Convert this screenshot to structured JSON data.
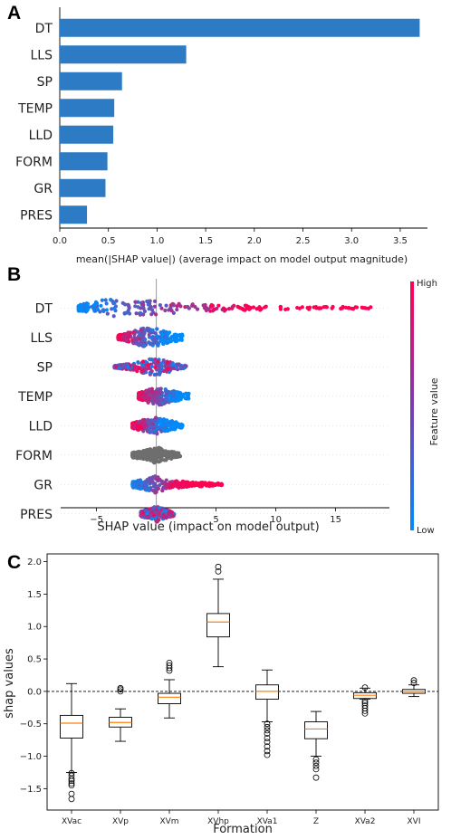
{
  "panels": {
    "a": "A",
    "b": "B",
    "c": "C"
  },
  "chart_data": [
    {
      "type": "bar",
      "orientation": "horizontal",
      "categories": [
        "DT",
        "LLS",
        "SP",
        "TEMP",
        "LLD",
        "FORM",
        "GR",
        "PRES"
      ],
      "values": [
        3.7,
        1.3,
        0.64,
        0.56,
        0.55,
        0.49,
        0.47,
        0.28
      ],
      "xlabel": "mean(|SHAP value|) (average impact on model output magnitude)",
      "xticks": [
        "0.0",
        "0.5",
        "1.0",
        "1.5",
        "2.0",
        "2.5",
        "3.0",
        "3.5"
      ],
      "xlim": [
        0,
        3.78
      ],
      "bar_color": "#2d7bc4"
    },
    {
      "type": "scatter",
      "subtype": "beeswarm",
      "categories": [
        "DT",
        "LLS",
        "SP",
        "TEMP",
        "LLD",
        "FORM",
        "GR",
        "PRES"
      ],
      "series": [
        {
          "name": "DT",
          "min": -6.5,
          "max": 18,
          "spread": [
            [
              -6.5,
              0.3
            ],
            [
              -4,
              0.9
            ],
            [
              -2,
              0.7
            ],
            [
              0,
              0.8
            ],
            [
              2,
              0.55
            ],
            [
              4,
              0.35
            ],
            [
              6,
              0.3
            ],
            [
              9,
              0.2
            ],
            [
              12,
              0.15
            ],
            [
              15,
              0.12
            ],
            [
              18,
              0.08
            ]
          ],
          "colorByX": "low-left"
        },
        {
          "name": "LLS",
          "min": -3.2,
          "max": 2.2,
          "spread": [
            [
              -3.2,
              0.2
            ],
            [
              -2,
              0.6
            ],
            [
              -1,
              0.95
            ],
            [
              0,
              0.9
            ],
            [
              1,
              0.55
            ],
            [
              2.2,
              0.3
            ]
          ],
          "colorByX": "high-left"
        },
        {
          "name": "SP",
          "min": -3.5,
          "max": 2.5,
          "spread": [
            [
              -3.5,
              0.1
            ],
            [
              -2,
              0.35
            ],
            [
              -1,
              0.65
            ],
            [
              0,
              0.9
            ],
            [
              1,
              0.55
            ],
            [
              2.5,
              0.1
            ]
          ],
          "colorByX": "mixed"
        },
        {
          "name": "TEMP",
          "min": -1.5,
          "max": 2.8,
          "spread": [
            [
              -1.5,
              0.3
            ],
            [
              -0.5,
              0.75
            ],
            [
              0.5,
              0.9
            ],
            [
              1.5,
              0.5
            ],
            [
              2.8,
              0.25
            ]
          ],
          "colorByX": "high-left"
        },
        {
          "name": "LLD",
          "min": -2.0,
          "max": 2.2,
          "spread": [
            [
              -2,
              0.25
            ],
            [
              -1,
              0.6
            ],
            [
              0,
              0.85
            ],
            [
              1,
              0.55
            ],
            [
              2.2,
              0.2
            ]
          ],
          "colorByX": "high-left"
        },
        {
          "name": "FORM",
          "min": -2.0,
          "max": 2.0,
          "spread": [
            [
              -2,
              0.25
            ],
            [
              -1,
              0.45
            ],
            [
              0,
              0.85
            ],
            [
              1,
              0.45
            ],
            [
              2,
              0.2
            ]
          ],
          "colorByX": "gray"
        },
        {
          "name": "GR",
          "min": -2.0,
          "max": 5.5,
          "spread": [
            [
              -2,
              0.3
            ],
            [
              -1,
              0.5
            ],
            [
              0,
              0.9
            ],
            [
              1,
              0.4
            ],
            [
              3,
              0.25
            ],
            [
              5.5,
              0.1
            ]
          ],
          "colorByX": "low-left"
        },
        {
          "name": "PRES",
          "min": -1.3,
          "max": 1.5,
          "spread": [
            [
              -1.3,
              0.25
            ],
            [
              -0.3,
              0.6
            ],
            [
              0,
              0.85
            ],
            [
              0.6,
              0.55
            ],
            [
              1.5,
              0.2
            ]
          ],
          "colorByX": "mixed"
        }
      ],
      "xlabel": "SHAP value (impact on model output)",
      "xticks": [
        "−5",
        "0",
        "5",
        "10",
        "15"
      ],
      "xlim": [
        -8,
        19.5
      ],
      "colorbar": {
        "label": "Feature value",
        "high": "High",
        "low": "Low",
        "color_high": "#ff0052",
        "color_low": "#008bfb"
      }
    },
    {
      "type": "box",
      "categories": [
        "XVac",
        "XVp",
        "XVm",
        "XVhp",
        "XVa1",
        "Z",
        "XVa2",
        "XVI"
      ],
      "boxes": [
        {
          "q1": -0.72,
          "median": -0.49,
          "q3": -0.37,
          "whislo": -1.25,
          "whishi": 0.12,
          "fliers": [
            -1.26,
            -1.3,
            -1.35,
            -1.38,
            -1.42,
            -1.45,
            -1.58,
            -1.66
          ]
        },
        {
          "q1": -0.55,
          "median": -0.48,
          "q3": -0.4,
          "whislo": -0.77,
          "whishi": -0.27,
          "fliers": [
            0.0,
            0.03,
            0.05
          ]
        },
        {
          "q1": -0.19,
          "median": -0.09,
          "q3": -0.03,
          "whislo": -0.41,
          "whishi": 0.18,
          "fliers": [
            0.32,
            0.36,
            0.4,
            0.44
          ]
        },
        {
          "q1": 0.84,
          "median": 1.07,
          "q3": 1.2,
          "whislo": 0.38,
          "whishi": 1.73,
          "fliers": [
            1.85,
            1.92
          ]
        },
        {
          "q1": -0.12,
          "median": 0.0,
          "q3": 0.1,
          "whislo": -0.47,
          "whishi": 0.33,
          "fliers": [
            -0.5,
            -0.55,
            -0.6,
            -0.65,
            -0.72,
            -0.78,
            -0.85,
            -0.92,
            -0.98
          ]
        },
        {
          "q1": -0.73,
          "median": -0.58,
          "q3": -0.47,
          "whislo": -1.0,
          "whishi": -0.31,
          "fliers": [
            -1.05,
            -1.1,
            -1.15,
            -1.2,
            -1.33
          ]
        },
        {
          "q1": -0.11,
          "median": -0.06,
          "q3": -0.02,
          "whislo": -0.12,
          "whishi": 0.05,
          "fliers": [
            -0.15,
            -0.18,
            -0.22,
            -0.26,
            -0.3,
            -0.34,
            0.06
          ]
        },
        {
          "q1": -0.03,
          "median": 0.0,
          "q3": 0.03,
          "whislo": -0.08,
          "whishi": 0.1,
          "fliers": [
            0.13,
            0.17
          ]
        }
      ],
      "xlabel": "Formation",
      "ylabel": "shap values",
      "yticks": [
        "2.0",
        "1.5",
        "1.0",
        "0.5",
        "0.0",
        "−0.5",
        "−1.0",
        "−1.5"
      ],
      "ylim": [
        -1.83,
        2.12
      ],
      "box_color": "#000000",
      "median_color": "#ff7f0e"
    }
  ]
}
